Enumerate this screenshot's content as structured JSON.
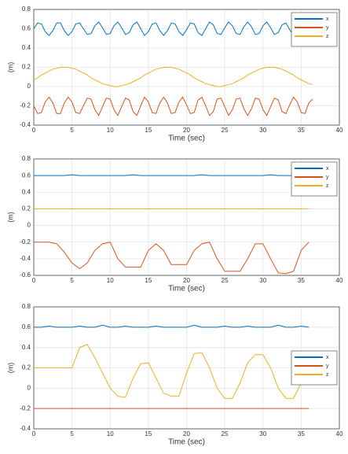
{
  "chart_data": [
    {
      "type": "line",
      "xlabel": "Time (sec)",
      "ylabel": "(m)",
      "grid": true,
      "legend": "upper right",
      "xlim": [
        0,
        40
      ],
      "xticks": [
        0,
        5,
        10,
        15,
        20,
        25,
        30,
        35,
        40
      ],
      "ylim": [
        -0.4,
        0.8
      ],
      "yticks": [
        -0.4,
        -0.2,
        0,
        0.2,
        0.4,
        0.6,
        0.8
      ],
      "x": [
        0,
        0.5,
        1,
        1.5,
        2,
        2.5,
        3,
        3.5,
        4,
        4.5,
        5,
        5.5,
        6,
        6.5,
        7,
        7.5,
        8,
        8.5,
        9,
        9.5,
        10,
        10.5,
        11,
        11.5,
        12,
        12.5,
        13,
        13.5,
        14,
        14.5,
        15,
        15.5,
        16,
        16.5,
        17,
        17.5,
        18,
        18.5,
        19,
        19.5,
        20,
        20.5,
        21,
        21.5,
        22,
        22.5,
        23,
        23.5,
        24,
        24.5,
        25,
        25.5,
        26,
        26.5,
        27,
        27.5,
        28,
        28.5,
        29,
        29.5,
        30,
        30.5,
        31,
        31.5,
        32,
        32.5,
        33,
        33.5,
        34,
        34.5,
        35,
        35.5,
        36,
        36.5
      ],
      "series": [
        {
          "name": "x",
          "color": "#0072bd",
          "values": [
            0.6,
            0.66,
            0.65,
            0.57,
            0.53,
            0.58,
            0.66,
            0.66,
            0.58,
            0.53,
            0.57,
            0.65,
            0.66,
            0.6,
            0.54,
            0.55,
            0.63,
            0.67,
            0.61,
            0.54,
            0.55,
            0.63,
            0.67,
            0.61,
            0.54,
            0.56,
            0.64,
            0.67,
            0.6,
            0.53,
            0.57,
            0.65,
            0.66,
            0.58,
            0.53,
            0.58,
            0.66,
            0.65,
            0.57,
            0.53,
            0.59,
            0.66,
            0.65,
            0.56,
            0.53,
            0.6,
            0.67,
            0.64,
            0.55,
            0.54,
            0.61,
            0.67,
            0.63,
            0.55,
            0.54,
            0.62,
            0.67,
            0.62,
            0.54,
            0.55,
            0.63,
            0.67,
            0.61,
            0.54,
            0.56,
            0.64,
            0.66,
            0.59,
            0.53,
            0.57,
            0.65,
            0.66,
            0.58,
            0.55
          ]
        },
        {
          "name": "y",
          "color": "#d95319",
          "values": [
            -0.2,
            -0.28,
            -0.27,
            -0.16,
            -0.11,
            -0.17,
            -0.28,
            -0.28,
            -0.17,
            -0.11,
            -0.16,
            -0.27,
            -0.28,
            -0.2,
            -0.12,
            -0.13,
            -0.24,
            -0.3,
            -0.21,
            -0.12,
            -0.13,
            -0.24,
            -0.3,
            -0.21,
            -0.12,
            -0.14,
            -0.26,
            -0.3,
            -0.2,
            -0.11,
            -0.16,
            -0.27,
            -0.28,
            -0.17,
            -0.11,
            -0.17,
            -0.28,
            -0.27,
            -0.16,
            -0.11,
            -0.19,
            -0.28,
            -0.27,
            -0.14,
            -0.11,
            -0.2,
            -0.3,
            -0.26,
            -0.13,
            -0.12,
            -0.21,
            -0.3,
            -0.24,
            -0.13,
            -0.12,
            -0.23,
            -0.3,
            -0.23,
            -0.12,
            -0.13,
            -0.24,
            -0.3,
            -0.21,
            -0.12,
            -0.14,
            -0.26,
            -0.28,
            -0.19,
            -0.11,
            -0.16,
            -0.27,
            -0.28,
            -0.17,
            -0.13
          ]
        },
        {
          "name": "z",
          "color": "#edb120",
          "values": [
            0.07,
            0.09,
            0.12,
            0.14,
            0.16,
            0.18,
            0.19,
            0.2,
            0.2,
            0.2,
            0.19,
            0.18,
            0.16,
            0.14,
            0.12,
            0.09,
            0.07,
            0.05,
            0.03,
            0.02,
            0.01,
            0,
            0,
            0.01,
            0.02,
            0.03,
            0.05,
            0.07,
            0.09,
            0.12,
            0.14,
            0.16,
            0.18,
            0.19,
            0.2,
            0.2,
            0.2,
            0.19,
            0.18,
            0.16,
            0.14,
            0.12,
            0.09,
            0.07,
            0.05,
            0.03,
            0.02,
            0.01,
            0,
            0,
            0.01,
            0.02,
            0.03,
            0.05,
            0.07,
            0.09,
            0.12,
            0.14,
            0.16,
            0.18,
            0.19,
            0.2,
            0.2,
            0.2,
            0.19,
            0.18,
            0.16,
            0.14,
            0.12,
            0.09,
            0.07,
            0.05,
            0.03,
            0.02
          ]
        }
      ]
    },
    {
      "type": "line",
      "xlabel": "Time (sec)",
      "ylabel": "(m)",
      "grid": true,
      "legend": "upper right",
      "xlim": [
        0,
        40
      ],
      "xticks": [
        0,
        5,
        10,
        15,
        20,
        25,
        30,
        35,
        40
      ],
      "ylim": [
        -0.6,
        0.8
      ],
      "yticks": [
        -0.6,
        -0.4,
        -0.2,
        0,
        0.2,
        0.4,
        0.6,
        0.8
      ],
      "x": [
        0,
        1,
        2,
        3,
        4,
        5,
        6,
        7,
        8,
        9,
        10,
        11,
        12,
        13,
        14,
        15,
        16,
        17,
        18,
        19,
        20,
        21,
        22,
        23,
        24,
        25,
        26,
        27,
        28,
        29,
        30,
        31,
        32,
        33,
        34,
        35,
        36
      ],
      "series": [
        {
          "name": "x",
          "color": "#0072bd",
          "values": [
            0.6,
            0.6,
            0.6,
            0.6,
            0.6,
            0.61,
            0.6,
            0.6,
            0.6,
            0.6,
            0.6,
            0.6,
            0.6,
            0.61,
            0.6,
            0.6,
            0.6,
            0.6,
            0.6,
            0.6,
            0.6,
            0.6,
            0.61,
            0.6,
            0.6,
            0.6,
            0.6,
            0.6,
            0.6,
            0.6,
            0.6,
            0.61,
            0.6,
            0.6,
            0.6,
            0.6,
            0.61
          ]
        },
        {
          "name": "y",
          "color": "#d95319",
          "values": [
            -0.2,
            -0.2,
            -0.2,
            -0.22,
            -0.32,
            -0.45,
            -0.52,
            -0.45,
            -0.3,
            -0.22,
            -0.2,
            -0.4,
            -0.5,
            -0.5,
            -0.5,
            -0.3,
            -0.22,
            -0.3,
            -0.47,
            -0.47,
            -0.47,
            -0.3,
            -0.22,
            -0.2,
            -0.4,
            -0.55,
            -0.55,
            -0.55,
            -0.4,
            -0.22,
            -0.22,
            -0.4,
            -0.57,
            -0.58,
            -0.55,
            -0.3,
            -0.2
          ]
        },
        {
          "name": "z",
          "color": "#edb120",
          "values": [
            0.2,
            0.2,
            0.2,
            0.2,
            0.2,
            0.2,
            0.2,
            0.2,
            0.2,
            0.2,
            0.2,
            0.2,
            0.2,
            0.2,
            0.2,
            0.2,
            0.2,
            0.2,
            0.2,
            0.2,
            0.2,
            0.2,
            0.2,
            0.2,
            0.2,
            0.2,
            0.2,
            0.2,
            0.2,
            0.2,
            0.2,
            0.2,
            0.2,
            0.2,
            0.2,
            0.2,
            0.2
          ]
        }
      ]
    },
    {
      "type": "line",
      "xlabel": "Time (sec)",
      "ylabel": "(m)",
      "grid": true,
      "legend": "center right",
      "xlim": [
        0,
        40
      ],
      "xticks": [
        0,
        5,
        10,
        15,
        20,
        25,
        30,
        35,
        40
      ],
      "ylim": [
        -0.4,
        0.8
      ],
      "yticks": [
        -0.4,
        -0.2,
        0,
        0.2,
        0.4,
        0.6,
        0.8
      ],
      "x": [
        0,
        1,
        2,
        3,
        4,
        5,
        6,
        7,
        8,
        9,
        10,
        11,
        12,
        13,
        14,
        15,
        16,
        17,
        18,
        19,
        20,
        21,
        22,
        23,
        24,
        25,
        26,
        27,
        28,
        29,
        30,
        31,
        32,
        33,
        34,
        35,
        36
      ],
      "series": [
        {
          "name": "x",
          "color": "#0072bd",
          "values": [
            0.6,
            0.6,
            0.61,
            0.6,
            0.6,
            0.6,
            0.61,
            0.6,
            0.6,
            0.62,
            0.6,
            0.6,
            0.61,
            0.6,
            0.6,
            0.6,
            0.61,
            0.6,
            0.6,
            0.6,
            0.6,
            0.62,
            0.6,
            0.6,
            0.6,
            0.61,
            0.6,
            0.6,
            0.61,
            0.6,
            0.6,
            0.6,
            0.62,
            0.6,
            0.6,
            0.61,
            0.6
          ]
        },
        {
          "name": "y",
          "color": "#d95319",
          "values": [
            -0.2,
            -0.2,
            -0.2,
            -0.2,
            -0.2,
            -0.2,
            -0.2,
            -0.2,
            -0.2,
            -0.2,
            -0.2,
            -0.2,
            -0.2,
            -0.2,
            -0.2,
            -0.2,
            -0.2,
            -0.2,
            -0.2,
            -0.2,
            -0.2,
            -0.2,
            -0.2,
            -0.2,
            -0.2,
            -0.2,
            -0.2,
            -0.2,
            -0.2,
            -0.2,
            -0.2,
            -0.2,
            -0.2,
            -0.2,
            -0.2,
            -0.2,
            -0.2
          ]
        },
        {
          "name": "z",
          "color": "#edb120",
          "values": [
            0.2,
            0.2,
            0.2,
            0.2,
            0.2,
            0.2,
            0.4,
            0.43,
            0.3,
            0.15,
            0,
            -0.08,
            -0.09,
            0.1,
            0.24,
            0.25,
            0.1,
            -0.05,
            -0.08,
            -0.08,
            0.15,
            0.34,
            0.35,
            0.2,
            0,
            -0.1,
            -0.1,
            0.05,
            0.25,
            0.33,
            0.33,
            0.2,
            0,
            -0.1,
            -0.1,
            0.05,
            0.2
          ]
        }
      ]
    }
  ]
}
